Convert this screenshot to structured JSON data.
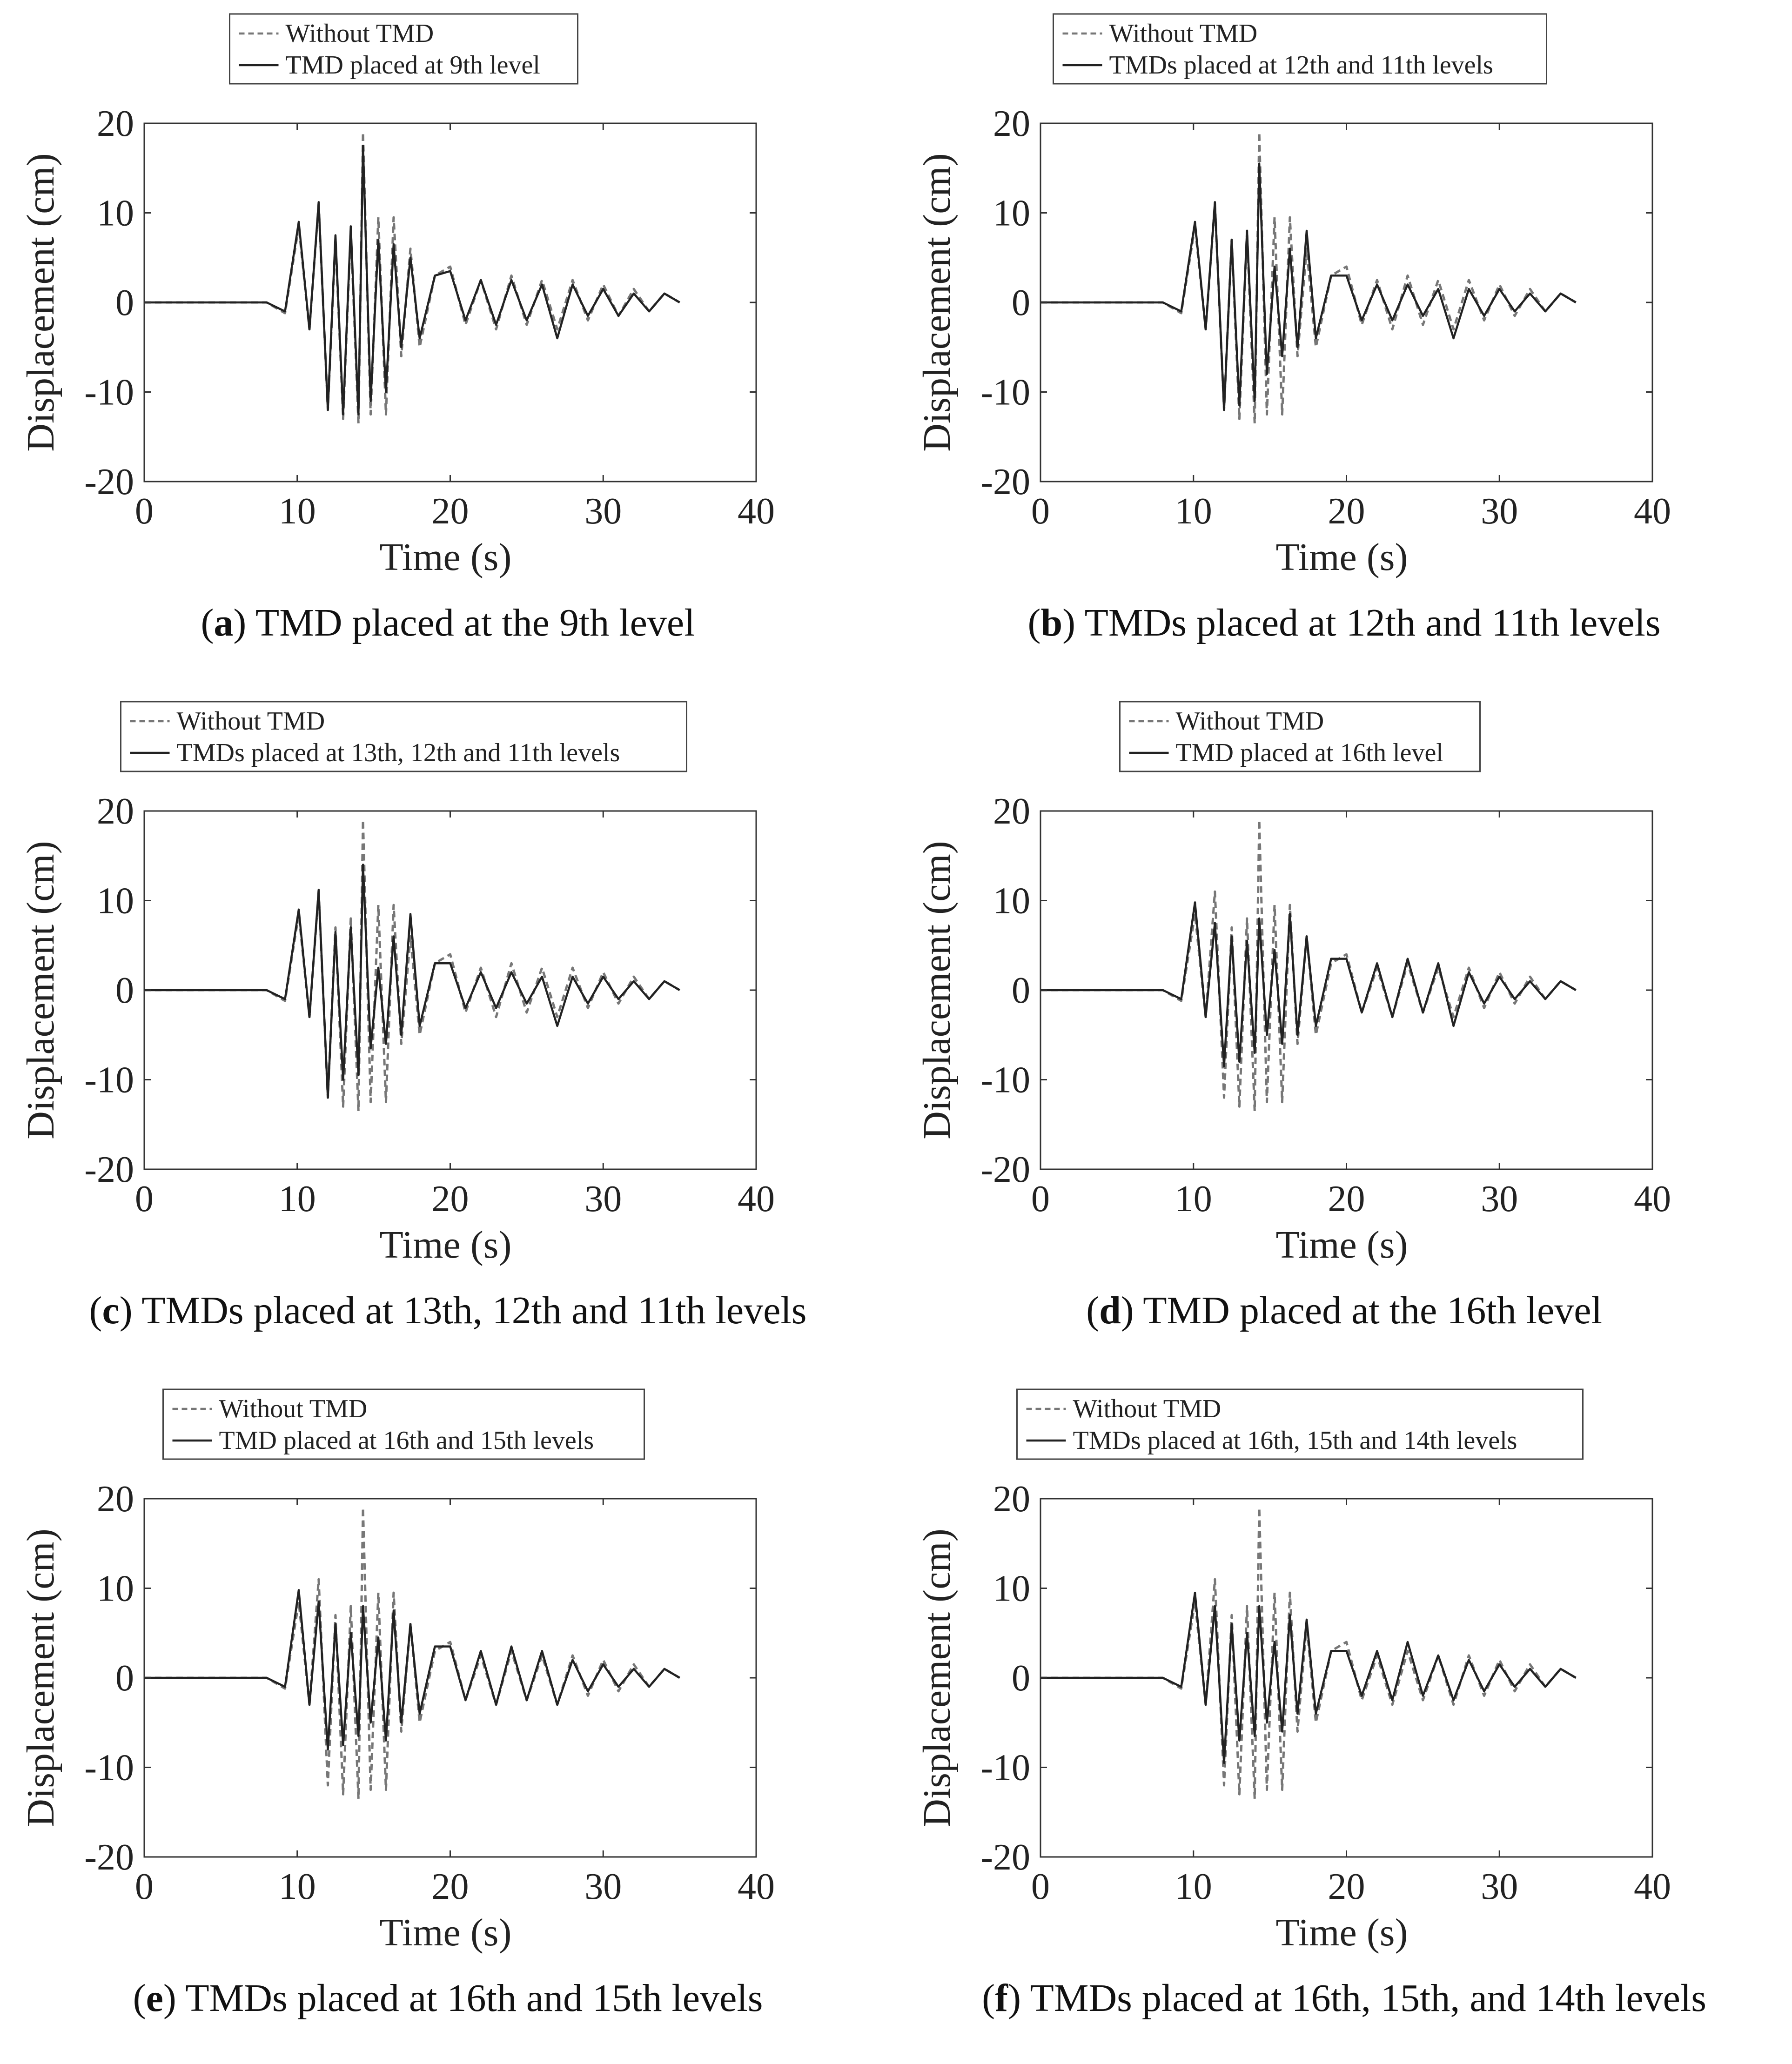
{
  "chart_data": [
    {
      "type": "line",
      "panel": "a",
      "caption_tag": "a",
      "caption_text": "TMD placed at the 9th level",
      "xlabel": "Time (s)",
      "ylabel": "Displacement (cm)",
      "xlim": [
        0,
        40
      ],
      "ylim": [
        -20,
        20
      ],
      "xticks": [
        "0",
        "10",
        "20",
        "30",
        "40"
      ],
      "yticks": [
        "20",
        "10",
        "0",
        "-10",
        "-20"
      ],
      "legend": "top-center",
      "series": [
        {
          "name": "Without TMD",
          "style": "dashed",
          "color": "#777777",
          "x": [
            0,
            8,
            9.2,
            10.1,
            10.8,
            11.4,
            12,
            12.5,
            13,
            13.5,
            14,
            14.3,
            14.8,
            15.3,
            15.8,
            16.3,
            16.8,
            17.4,
            18,
            19,
            20,
            21,
            22,
            23,
            24,
            25,
            26,
            27,
            28,
            29,
            30,
            31,
            32,
            33,
            34,
            35
          ],
          "y": [
            0,
            0,
            -1.2,
            8.5,
            -3,
            11,
            -12,
            7,
            -13,
            8,
            -13.5,
            19,
            -12.5,
            9.5,
            -12.5,
            9.5,
            -6,
            6,
            -5,
            3,
            4,
            -2.5,
            2.5,
            -3,
            3,
            -2.5,
            2.5,
            -3,
            2.5,
            -2,
            2,
            -1.5,
            1.5,
            -1,
            1,
            0
          ]
        },
        {
          "name": "TMD placed at 9th level",
          "style": "solid",
          "color": "#222222",
          "x": [
            0,
            8,
            9.2,
            10.1,
            10.8,
            11.4,
            12,
            12.5,
            13,
            13.5,
            14,
            14.3,
            14.8,
            15.3,
            15.8,
            16.3,
            16.8,
            17.4,
            18,
            19,
            20,
            21,
            22,
            23,
            24,
            25,
            26,
            27,
            28,
            29,
            30,
            31,
            32,
            33,
            34,
            35
          ],
          "y": [
            0,
            0,
            -1,
            9,
            -3,
            11.2,
            -12,
            7.5,
            -12.5,
            8.5,
            -12.5,
            17.5,
            -11,
            7,
            -10,
            6.5,
            -5,
            5,
            -4,
            3,
            3.5,
            -2,
            2.5,
            -2.5,
            2.5,
            -2,
            2,
            -4,
            2,
            -1.5,
            1.5,
            -1.5,
            1,
            -1,
            1,
            0
          ]
        }
      ]
    },
    {
      "type": "line",
      "panel": "b",
      "caption_tag": "b",
      "caption_text": "TMDs placed at 12th and 11th levels",
      "xlabel": "Time (s)",
      "ylabel": "Displacement (cm)",
      "xlim": [
        0,
        40
      ],
      "ylim": [
        -20,
        20
      ],
      "xticks": [
        "0",
        "10",
        "20",
        "30",
        "40"
      ],
      "yticks": [
        "20",
        "10",
        "0",
        "-10",
        "-20"
      ],
      "legend": "top-center",
      "series": [
        {
          "name": "Without TMD",
          "style": "dashed",
          "color": "#777777",
          "x": [
            0,
            8,
            9.2,
            10.1,
            10.8,
            11.4,
            12,
            12.5,
            13,
            13.5,
            14,
            14.3,
            14.8,
            15.3,
            15.8,
            16.3,
            16.8,
            17.4,
            18,
            19,
            20,
            21,
            22,
            23,
            24,
            25,
            26,
            27,
            28,
            29,
            30,
            31,
            32,
            33,
            34,
            35
          ],
          "y": [
            0,
            0,
            -1.2,
            8.5,
            -3,
            11,
            -12,
            7,
            -13,
            8,
            -13.5,
            19,
            -12.5,
            9.5,
            -12.5,
            9.5,
            -6,
            6,
            -5,
            3,
            4,
            -2.5,
            2.5,
            -3,
            3,
            -2.5,
            2.5,
            -3,
            2.5,
            -2,
            2,
            -1.5,
            1.5,
            -1,
            1,
            0
          ]
        },
        {
          "name": "TMDs placed at 12th and 11th levels",
          "style": "solid",
          "color": "#222222",
          "x": [
            0,
            8,
            9.2,
            10.1,
            10.8,
            11.4,
            12,
            12.5,
            13,
            13.5,
            14,
            14.3,
            14.8,
            15.3,
            15.8,
            16.3,
            16.8,
            17.4,
            18,
            19,
            20,
            21,
            22,
            23,
            24,
            25,
            26,
            27,
            28,
            29,
            30,
            31,
            32,
            33,
            34,
            35
          ],
          "y": [
            0,
            0,
            -1,
            9,
            -3,
            11.2,
            -12,
            7,
            -11.5,
            8,
            -11,
            15.5,
            -8,
            4,
            -6,
            6,
            -5,
            8,
            -4,
            3,
            3,
            -2,
            2,
            -2,
            2,
            -1.5,
            1.5,
            -4,
            1.5,
            -1.5,
            1.5,
            -1,
            1,
            -1,
            1,
            0
          ]
        }
      ]
    },
    {
      "type": "line",
      "panel": "c",
      "caption_tag": "c",
      "caption_text": "TMDs placed at 13th, 12th and 11th levels",
      "xlabel": "Time (s)",
      "ylabel": "Displacement (cm)",
      "xlim": [
        0,
        40
      ],
      "ylim": [
        -20,
        20
      ],
      "xticks": [
        "0",
        "10",
        "20",
        "30",
        "40"
      ],
      "yticks": [
        "20",
        "10",
        "0",
        "-10",
        "-20"
      ],
      "legend": "top-center",
      "series": [
        {
          "name": "Without TMD",
          "style": "dashed",
          "color": "#777777",
          "x": [
            0,
            8,
            9.2,
            10.1,
            10.8,
            11.4,
            12,
            12.5,
            13,
            13.5,
            14,
            14.3,
            14.8,
            15.3,
            15.8,
            16.3,
            16.8,
            17.4,
            18,
            19,
            20,
            21,
            22,
            23,
            24,
            25,
            26,
            27,
            28,
            29,
            30,
            31,
            32,
            33,
            34,
            35
          ],
          "y": [
            0,
            0,
            -1.2,
            8.5,
            -3,
            11,
            -12,
            7,
            -13,
            8,
            -13.5,
            19,
            -12.5,
            9.5,
            -12.5,
            9.5,
            -6,
            6,
            -5,
            3,
            4,
            -2.5,
            2.5,
            -3,
            3,
            -2.5,
            2.5,
            -3,
            2.5,
            -2,
            2,
            -1.5,
            1.5,
            -1,
            1,
            0
          ]
        },
        {
          "name": "TMDs placed at 13th, 12th and 11th levels",
          "style": "solid",
          "color": "#222222",
          "x": [
            0,
            8,
            9.2,
            10.1,
            10.8,
            11.4,
            12,
            12.5,
            13,
            13.5,
            14,
            14.3,
            14.8,
            15.3,
            15.8,
            16.3,
            16.8,
            17.4,
            18,
            19,
            20,
            21,
            22,
            23,
            24,
            25,
            26,
            27,
            28,
            29,
            30,
            31,
            32,
            33,
            34,
            35
          ],
          "y": [
            0,
            0,
            -1,
            9,
            -3,
            11.2,
            -12,
            6.5,
            -10,
            7,
            -9.5,
            14,
            -6.5,
            2.5,
            -6,
            6,
            -5,
            8.5,
            -4,
            3,
            3,
            -2,
            2,
            -2,
            2,
            -1.5,
            1.5,
            -4,
            1.5,
            -1.5,
            1.5,
            -1,
            1,
            -1,
            1,
            0
          ]
        }
      ]
    },
    {
      "type": "line",
      "panel": "d",
      "caption_tag": "d",
      "caption_text": "TMD placed at the 16th level",
      "xlabel": "Time (s)",
      "ylabel": "Displacement (cm)",
      "xlim": [
        0,
        40
      ],
      "ylim": [
        -20,
        20
      ],
      "xticks": [
        "0",
        "10",
        "20",
        "30",
        "40"
      ],
      "yticks": [
        "20",
        "10",
        "0",
        "-10",
        "-20"
      ],
      "legend": "top-center",
      "series": [
        {
          "name": "Without TMD",
          "style": "dashed",
          "color": "#777777",
          "x": [
            0,
            8,
            9.2,
            10.1,
            10.8,
            11.4,
            12,
            12.5,
            13,
            13.5,
            14,
            14.3,
            14.8,
            15.3,
            15.8,
            16.3,
            16.8,
            17.4,
            18,
            19,
            20,
            21,
            22,
            23,
            24,
            25,
            26,
            27,
            28,
            29,
            30,
            31,
            32,
            33,
            34,
            35
          ],
          "y": [
            0,
            0,
            -1.2,
            8.5,
            -3,
            11,
            -12,
            7,
            -13,
            8,
            -13.5,
            19,
            -12.5,
            9.5,
            -12.5,
            9.5,
            -6,
            6,
            -5,
            3,
            4,
            -2.5,
            2.5,
            -3,
            3,
            -2.5,
            2.5,
            -3,
            2.5,
            -2,
            2,
            -1.5,
            1.5,
            -1,
            1,
            0
          ]
        },
        {
          "name": "TMD placed at 16th level",
          "style": "solid",
          "color": "#222222",
          "x": [
            0,
            8,
            9.2,
            10.1,
            10.8,
            11.4,
            12,
            12.5,
            13,
            13.5,
            14,
            14.3,
            14.8,
            15.3,
            15.8,
            16.3,
            16.8,
            17.4,
            18,
            19,
            20,
            21,
            22,
            23,
            24,
            25,
            26,
            27,
            28,
            29,
            30,
            31,
            32,
            33,
            34,
            35
          ],
          "y": [
            0,
            0,
            -1,
            9.8,
            -3,
            7.5,
            -8.5,
            6,
            -8,
            5.5,
            -7,
            8,
            -5,
            4.5,
            -6,
            8.5,
            -5,
            6,
            -4,
            3.5,
            3.5,
            -2.5,
            3,
            -3,
            3.5,
            -2.5,
            3,
            -4,
            2,
            -1.5,
            1.5,
            -1,
            1,
            -1,
            1,
            0
          ]
        }
      ]
    },
    {
      "type": "line",
      "panel": "e",
      "caption_tag": "e",
      "caption_text": "TMDs placed at 16th and 15th levels",
      "xlabel": "Time (s)",
      "ylabel": "Displacement (cm)",
      "xlim": [
        0,
        40
      ],
      "ylim": [
        -20,
        20
      ],
      "xticks": [
        "0",
        "10",
        "20",
        "30",
        "40"
      ],
      "yticks": [
        "20",
        "10",
        "0",
        "-10",
        "-20"
      ],
      "legend": "top-center",
      "series": [
        {
          "name": "Without TMD",
          "style": "dashed",
          "color": "#777777",
          "x": [
            0,
            8,
            9.2,
            10.1,
            10.8,
            11.4,
            12,
            12.5,
            13,
            13.5,
            14,
            14.3,
            14.8,
            15.3,
            15.8,
            16.3,
            16.8,
            17.4,
            18,
            19,
            20,
            21,
            22,
            23,
            24,
            25,
            26,
            27,
            28,
            29,
            30,
            31,
            32,
            33,
            34,
            35
          ],
          "y": [
            0,
            0,
            -1.2,
            8.5,
            -3,
            11,
            -12,
            7,
            -13,
            8,
            -13.5,
            19,
            -12.5,
            9.5,
            -12.5,
            9.5,
            -6,
            6,
            -5,
            3,
            4,
            -2.5,
            2.5,
            -3,
            3,
            -2.5,
            2.5,
            -3,
            2.5,
            -2,
            2,
            -1.5,
            1.5,
            -1,
            1,
            0
          ]
        },
        {
          "name": "TMD placed at 16th and 15th levels",
          "style": "solid",
          "color": "#222222",
          "x": [
            0,
            8,
            9.2,
            10.1,
            10.8,
            11.4,
            12,
            12.5,
            13,
            13.5,
            14,
            14.3,
            14.8,
            15.3,
            15.8,
            16.3,
            16.8,
            17.4,
            18,
            19,
            20,
            21,
            22,
            23,
            24,
            25,
            26,
            27,
            28,
            29,
            30,
            31,
            32,
            33,
            34,
            35
          ],
          "y": [
            0,
            0,
            -1,
            9.8,
            -3,
            8.5,
            -8,
            6,
            -7.5,
            5,
            -6.5,
            8,
            -5,
            4.5,
            -7,
            7.5,
            -5,
            6,
            -4,
            3.5,
            3.5,
            -2.5,
            3,
            -3,
            3.5,
            -2.5,
            3,
            -3,
            2,
            -1.5,
            1.5,
            -1,
            1,
            -1,
            1,
            0
          ]
        }
      ]
    },
    {
      "type": "line",
      "panel": "f",
      "caption_tag": "f",
      "caption_text": "TMDs placed at 16th, 15th, and 14th levels",
      "xlabel": "Time (s)",
      "ylabel": "Displacement (cm)",
      "xlim": [
        0,
        40
      ],
      "ylim": [
        -20,
        20
      ],
      "xticks": [
        "0",
        "10",
        "20",
        "30",
        "40"
      ],
      "yticks": [
        "20",
        "10",
        "0",
        "-10",
        "-20"
      ],
      "legend": "top-center",
      "series": [
        {
          "name": "Without TMD",
          "style": "dashed",
          "color": "#777777",
          "x": [
            0,
            8,
            9.2,
            10.1,
            10.8,
            11.4,
            12,
            12.5,
            13,
            13.5,
            14,
            14.3,
            14.8,
            15.3,
            15.8,
            16.3,
            16.8,
            17.4,
            18,
            19,
            20,
            21,
            22,
            23,
            24,
            25,
            26,
            27,
            28,
            29,
            30,
            31,
            32,
            33,
            34,
            35
          ],
          "y": [
            0,
            0,
            -1.2,
            8.5,
            -3,
            11,
            -12,
            7,
            -13,
            8,
            -13.5,
            19,
            -12.5,
            9.5,
            -12.5,
            9.5,
            -6,
            6,
            -5,
            3,
            4,
            -2.5,
            2.5,
            -3,
            3,
            -2.5,
            2.5,
            -3,
            2.5,
            -2,
            2,
            -1.5,
            1.5,
            -1,
            1,
            0
          ]
        },
        {
          "name": "TMDs placed at 16th, 15th and 14th levels",
          "style": "solid",
          "color": "#222222",
          "x": [
            0,
            8,
            9.2,
            10.1,
            10.8,
            11.4,
            12,
            12.5,
            13,
            13.5,
            14,
            14.3,
            14.8,
            15.3,
            15.8,
            16.3,
            16.8,
            17.4,
            18,
            19,
            20,
            21,
            22,
            23,
            24,
            25,
            26,
            27,
            28,
            29,
            30,
            31,
            32,
            33,
            34,
            35
          ],
          "y": [
            0,
            0,
            -1,
            9.5,
            -3,
            8,
            -9.5,
            6,
            -7,
            5,
            -6.5,
            8,
            -5,
            4,
            -6,
            7,
            -4,
            6.5,
            -4,
            3,
            3,
            -2,
            3,
            -2.5,
            4,
            -2,
            2.5,
            -2.5,
            2,
            -1.5,
            1.5,
            -1,
            1,
            -1,
            1,
            0
          ]
        }
      ]
    }
  ]
}
